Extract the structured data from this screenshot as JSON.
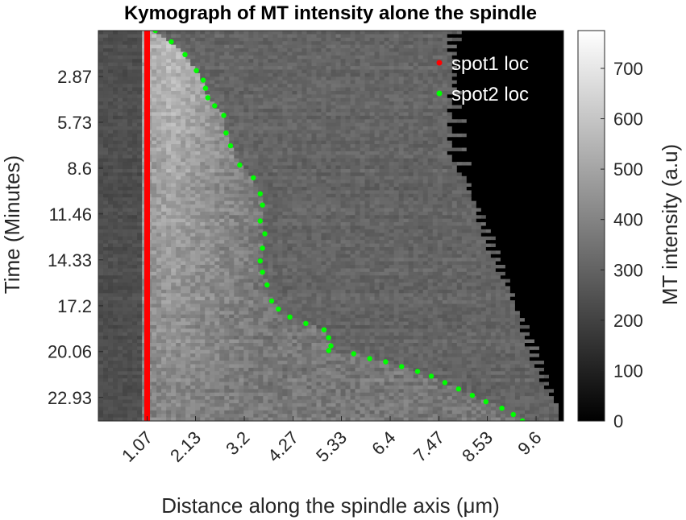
{
  "chart_data": {
    "type": "heatmap",
    "title": "Kymograph of MT intensity alone the spindle",
    "xlabel": "Distance along the spindle axis (μm)",
    "ylabel": "Time (Minutes)",
    "x_ticks": [
      "1.07",
      "2.13",
      "3.2",
      "4.27",
      "5.33",
      "6.4",
      "7.47",
      "8.53",
      "9.6"
    ],
    "x_tick_values": [
      1.07,
      2.13,
      3.2,
      4.27,
      5.33,
      6.4,
      7.47,
      8.53,
      9.6
    ],
    "xlim": [
      0,
      10.2
    ],
    "y_ticks": [
      "2.87",
      "5.73",
      "8.6",
      "11.46",
      "14.33",
      "17.2",
      "20.06",
      "22.93"
    ],
    "y_tick_values": [
      2.87,
      5.73,
      8.6,
      11.46,
      14.33,
      17.2,
      20.06,
      22.93
    ],
    "ylim": [
      0,
      24.4
    ],
    "y_reversed": true,
    "colormap": "gray",
    "colorbar": {
      "label": "MT intensity (a.u)",
      "ticks": [
        "0",
        "100",
        "200",
        "300",
        "400",
        "500",
        "600",
        "700"
      ],
      "tick_values": [
        0,
        100,
        200,
        300,
        400,
        500,
        600,
        700
      ],
      "range": [
        0,
        775
      ]
    },
    "legend_position": "top-right",
    "series": [
      {
        "name": "spot1 loc",
        "color": "#ff0000",
        "x": [
          1.07,
          1.07
        ],
        "y": [
          0,
          24.4
        ]
      },
      {
        "name": "spot2 loc",
        "color": "#00ff00",
        "x": [
          1.25,
          1.6,
          1.9,
          2.15,
          2.3,
          2.35,
          2.4,
          2.55,
          2.75,
          2.8,
          2.9,
          3.1,
          3.4,
          3.55,
          3.6,
          3.55,
          3.65,
          3.6,
          3.55,
          3.6,
          3.7,
          3.8,
          3.95,
          4.2,
          4.55,
          4.95,
          5.05,
          5.1,
          5.05,
          5.6,
          5.95,
          6.3,
          6.65,
          7.0,
          7.3,
          7.6,
          7.9,
          8.2,
          8.5,
          8.85,
          9.1,
          9.3
        ],
        "y": [
          0.0,
          0.7,
          1.5,
          2.5,
          3.1,
          3.6,
          4.2,
          4.7,
          5.3,
          6.4,
          7.2,
          8.4,
          9.2,
          10.2,
          10.9,
          11.9,
          12.7,
          13.6,
          14.4,
          15.1,
          15.9,
          16.9,
          17.4,
          17.9,
          18.3,
          18.7,
          19.2,
          19.7,
          20.0,
          20.2,
          20.5,
          20.7,
          21.0,
          21.3,
          21.6,
          22.0,
          22.4,
          22.8,
          23.2,
          23.6,
          24.0,
          24.4
        ]
      }
    ]
  }
}
